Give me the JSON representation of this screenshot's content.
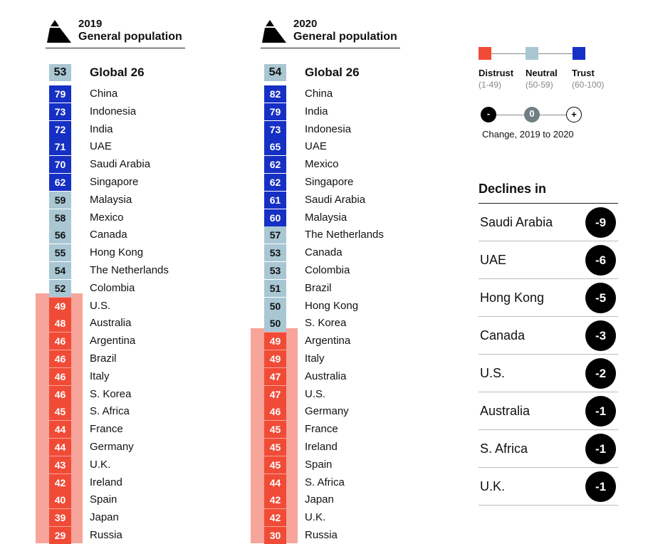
{
  "colors": {
    "distrust": "#f04b37",
    "distrust_band": "#f7a49b",
    "neutral": "#a9c7d3",
    "trust": "#1630c4"
  },
  "panels": [
    {
      "year": "2019",
      "subtitle": "General population",
      "global": {
        "name": "Global 26",
        "value": 53
      },
      "rows": [
        {
          "name": "China",
          "value": 79
        },
        {
          "name": "Indonesia",
          "value": 73
        },
        {
          "name": "India",
          "value": 72
        },
        {
          "name": "UAE",
          "value": 71
        },
        {
          "name": "Saudi Arabia",
          "value": 70
        },
        {
          "name": "Singapore",
          "value": 62
        },
        {
          "name": "Malaysia",
          "value": 59
        },
        {
          "name": "Mexico",
          "value": 58
        },
        {
          "name": "Canada",
          "value": 56
        },
        {
          "name": "Hong Kong",
          "value": 55
        },
        {
          "name": "The Netherlands",
          "value": 54
        },
        {
          "name": "Colombia",
          "value": 52
        },
        {
          "name": "U.S.",
          "value": 49
        },
        {
          "name": "Australia",
          "value": 48
        },
        {
          "name": "Argentina",
          "value": 46
        },
        {
          "name": "Brazil",
          "value": 46
        },
        {
          "name": "Italy",
          "value": 46
        },
        {
          "name": "S. Korea",
          "value": 46
        },
        {
          "name": "S. Africa",
          "value": 45
        },
        {
          "name": "France",
          "value": 44
        },
        {
          "name": "Germany",
          "value": 44
        },
        {
          "name": "U.K.",
          "value": 43
        },
        {
          "name": "Ireland",
          "value": 42
        },
        {
          "name": "Spain",
          "value": 40
        },
        {
          "name": "Japan",
          "value": 39
        },
        {
          "name": "Russia",
          "value": 29
        }
      ]
    },
    {
      "year": "2020",
      "subtitle": "General population",
      "global": {
        "name": "Global 26",
        "value": 54
      },
      "rows": [
        {
          "name": "China",
          "value": 82
        },
        {
          "name": "India",
          "value": 79
        },
        {
          "name": "Indonesia",
          "value": 73
        },
        {
          "name": "UAE",
          "value": 65
        },
        {
          "name": "Mexico",
          "value": 62
        },
        {
          "name": "Singapore",
          "value": 62
        },
        {
          "name": "Saudi Arabia",
          "value": 61
        },
        {
          "name": "Malaysia",
          "value": 60
        },
        {
          "name": "The Netherlands",
          "value": 57
        },
        {
          "name": "Canada",
          "value": 53
        },
        {
          "name": "Colombia",
          "value": 53
        },
        {
          "name": "Brazil",
          "value": 51
        },
        {
          "name": "Hong Kong",
          "value": 50
        },
        {
          "name": "S. Korea",
          "value": 50
        },
        {
          "name": "Argentina",
          "value": 49
        },
        {
          "name": "Italy",
          "value": 49
        },
        {
          "name": "Australia",
          "value": 47
        },
        {
          "name": "U.S.",
          "value": 47
        },
        {
          "name": "Germany",
          "value": 46
        },
        {
          "name": "France",
          "value": 45
        },
        {
          "name": "Ireland",
          "value": 45
        },
        {
          "name": "Spain",
          "value": 45
        },
        {
          "name": "S. Africa",
          "value": 44
        },
        {
          "name": "Japan",
          "value": 42
        },
        {
          "name": "U.K.",
          "value": 42
        },
        {
          "name": "Russia",
          "value": 30
        }
      ]
    }
  ],
  "legend": {
    "distrust": {
      "label": "Distrust",
      "range": "(1-49)"
    },
    "neutral": {
      "label": "Neutral",
      "range": "(50-59)"
    },
    "trust": {
      "label": "Trust",
      "range": "(60-100)"
    },
    "change_symbols": {
      "minus": "-",
      "zero": "0",
      "plus": "+"
    },
    "change_caption": "Change, 2019 to 2020"
  },
  "declines": {
    "title": "Declines in",
    "items": [
      {
        "name": "Saudi Arabia",
        "value": "-9"
      },
      {
        "name": "UAE",
        "value": "-6"
      },
      {
        "name": "Hong Kong",
        "value": "-5"
      },
      {
        "name": "Canada",
        "value": "-3"
      },
      {
        "name": "U.S.",
        "value": "-2"
      },
      {
        "name": "Australia",
        "value": "-1"
      },
      {
        "name": "S. Africa",
        "value": "-1"
      },
      {
        "name": "U.K.",
        "value": "-1"
      }
    ]
  },
  "chart_data": {
    "type": "table",
    "categories_2019": [
      "Global 26",
      "China",
      "Indonesia",
      "India",
      "UAE",
      "Saudi Arabia",
      "Singapore",
      "Malaysia",
      "Mexico",
      "Canada",
      "Hong Kong",
      "The Netherlands",
      "Colombia",
      "U.S.",
      "Australia",
      "Argentina",
      "Brazil",
      "Italy",
      "S. Korea",
      "S. Africa",
      "France",
      "Germany",
      "U.K.",
      "Ireland",
      "Spain",
      "Japan",
      "Russia"
    ],
    "values_2019": [
      53,
      79,
      73,
      72,
      71,
      70,
      62,
      59,
      58,
      56,
      55,
      54,
      52,
      49,
      48,
      46,
      46,
      46,
      46,
      45,
      44,
      44,
      43,
      42,
      40,
      39,
      29
    ],
    "categories_2020": [
      "Global 26",
      "China",
      "India",
      "Indonesia",
      "UAE",
      "Mexico",
      "Singapore",
      "Saudi Arabia",
      "Malaysia",
      "The Netherlands",
      "Canada",
      "Colombia",
      "Brazil",
      "Hong Kong",
      "S. Korea",
      "Argentina",
      "Italy",
      "Australia",
      "U.S.",
      "Germany",
      "France",
      "Ireland",
      "Spain",
      "S. Africa",
      "Japan",
      "U.K.",
      "Russia"
    ],
    "values_2020": [
      54,
      82,
      79,
      73,
      65,
      62,
      62,
      61,
      60,
      57,
      53,
      53,
      51,
      50,
      50,
      49,
      49,
      47,
      47,
      46,
      45,
      45,
      45,
      44,
      42,
      42,
      30
    ],
    "declines": {
      "categories": [
        "Saudi Arabia",
        "UAE",
        "Hong Kong",
        "Canada",
        "U.S.",
        "Australia",
        "S. Africa",
        "U.K."
      ],
      "values": [
        -9,
        -6,
        -5,
        -3,
        -2,
        -1,
        -1,
        -1
      ]
    }
  }
}
